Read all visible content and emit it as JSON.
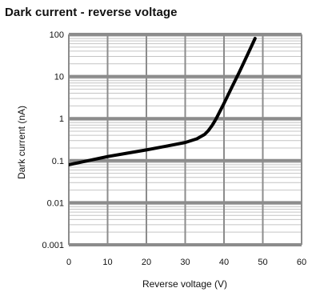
{
  "chart_data": {
    "type": "line",
    "title": "Dark current - reverse voltage",
    "xlabel": "Reverse voltage (V)",
    "ylabel": "Dark current (nA)",
    "xlim": [
      0,
      60
    ],
    "ylim": [
      0.001,
      100
    ],
    "yscale": "log",
    "grid": true,
    "legend": "none",
    "x_ticks": [
      "0",
      "10",
      "20",
      "30",
      "40",
      "50",
      "60"
    ],
    "y_ticks": [
      "0.001",
      "0.01",
      "0.1",
      "1",
      "10",
      "100"
    ],
    "colors": {
      "line": "#000000",
      "grid_major": "#8c8c8c",
      "grid_minor": "#c4c4c4",
      "background": "#ffffff"
    },
    "series": [
      {
        "x": [
          0,
          5,
          10,
          15,
          20,
          25,
          30,
          33,
          35,
          36,
          37,
          38,
          40,
          42,
          44,
          46,
          48
        ],
        "y": [
          0.08,
          0.1,
          0.125,
          0.15,
          0.18,
          0.22,
          0.27,
          0.33,
          0.42,
          0.52,
          0.7,
          1.0,
          2.3,
          5.5,
          13,
          32,
          80
        ]
      }
    ]
  }
}
